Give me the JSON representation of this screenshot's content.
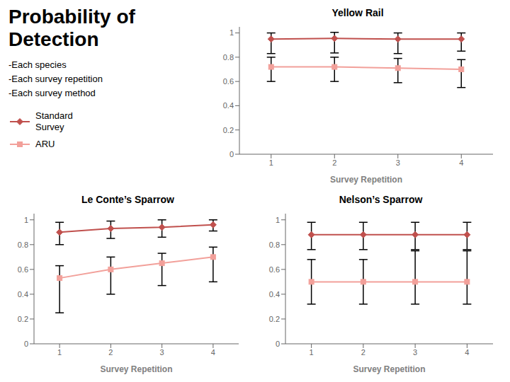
{
  "title": "Probability of\nDetection",
  "subtitle": [
    "-Each species",
    "-Each survey repetition",
    "-Each survey method"
  ],
  "chart_data": [
    {
      "type": "line",
      "title": "Yellow Rail",
      "x_label": "Survey Repetition",
      "x": [
        1,
        2,
        3,
        4
      ],
      "xlim": [
        0.5,
        4.5
      ],
      "xticks": [
        1,
        2,
        3,
        4
      ],
      "ylim": [
        0,
        1.05
      ],
      "yticks": [
        0,
        0.2,
        0.4,
        0.6,
        0.8,
        1
      ],
      "grid": false,
      "legend": "left",
      "series": [
        {
          "name": "Standard\nSurvey",
          "color": "#C0504D",
          "marker": "diamond",
          "values": [
            0.95,
            0.955,
            0.95,
            0.95
          ],
          "error_low": [
            0.12,
            0.12,
            0.12,
            0.1
          ],
          "error_high": [
            0.05,
            0.05,
            0.05,
            0.05
          ]
        },
        {
          "name": "ARU",
          "color": "#F2A09A",
          "marker": "square",
          "values": [
            0.72,
            0.72,
            0.71,
            0.7
          ],
          "error_low": [
            0.12,
            0.12,
            0.12,
            0.15
          ],
          "error_high": [
            0.08,
            0.08,
            0.08,
            0.08
          ]
        }
      ]
    },
    {
      "type": "line",
      "title": "Le Conte’s Sparrow",
      "x_label": "Survey Repetition",
      "x": [
        1,
        2,
        3,
        4
      ],
      "xlim": [
        0.5,
        4.5
      ],
      "xticks": [
        1,
        2,
        3,
        4
      ],
      "ylim": [
        0,
        1.05
      ],
      "yticks": [
        0,
        0.2,
        0.4,
        0.6,
        0.8,
        1
      ],
      "grid": false,
      "series": [
        {
          "name": "Standard\nSurvey",
          "color": "#C0504D",
          "marker": "diamond",
          "values": [
            0.9,
            0.93,
            0.94,
            0.96
          ],
          "error_low": [
            0.1,
            0.08,
            0.08,
            0.05
          ],
          "error_high": [
            0.08,
            0.06,
            0.06,
            0.04
          ]
        },
        {
          "name": "ARU",
          "color": "#F2A09A",
          "marker": "square",
          "values": [
            0.53,
            0.6,
            0.65,
            0.7
          ],
          "error_low": [
            0.28,
            0.2,
            0.18,
            0.2
          ],
          "error_high": [
            0.1,
            0.1,
            0.08,
            0.08
          ]
        }
      ]
    },
    {
      "type": "line",
      "title": "Nelson’s Sparrow",
      "x_label": "Survey Repetition",
      "x": [
        1,
        2,
        3,
        4
      ],
      "xlim": [
        0.5,
        4.5
      ],
      "xticks": [
        1,
        2,
        3,
        4
      ],
      "ylim": [
        0,
        1.05
      ],
      "yticks": [
        0,
        0.2,
        0.4,
        0.6,
        0.8,
        1
      ],
      "grid": false,
      "series": [
        {
          "name": "Standard\nSurvey",
          "color": "#C0504D",
          "marker": "diamond",
          "values": [
            0.88,
            0.88,
            0.88,
            0.88
          ],
          "error_low": [
            0.12,
            0.12,
            0.12,
            0.12
          ],
          "error_high": [
            0.1,
            0.1,
            0.1,
            0.1
          ]
        },
        {
          "name": "ARU",
          "color": "#F2A09A",
          "marker": "square",
          "values": [
            0.5,
            0.5,
            0.5,
            0.5
          ],
          "error_low": [
            0.18,
            0.18,
            0.18,
            0.18
          ],
          "error_high": [
            0.18,
            0.18,
            0.25,
            0.25
          ]
        }
      ]
    }
  ]
}
